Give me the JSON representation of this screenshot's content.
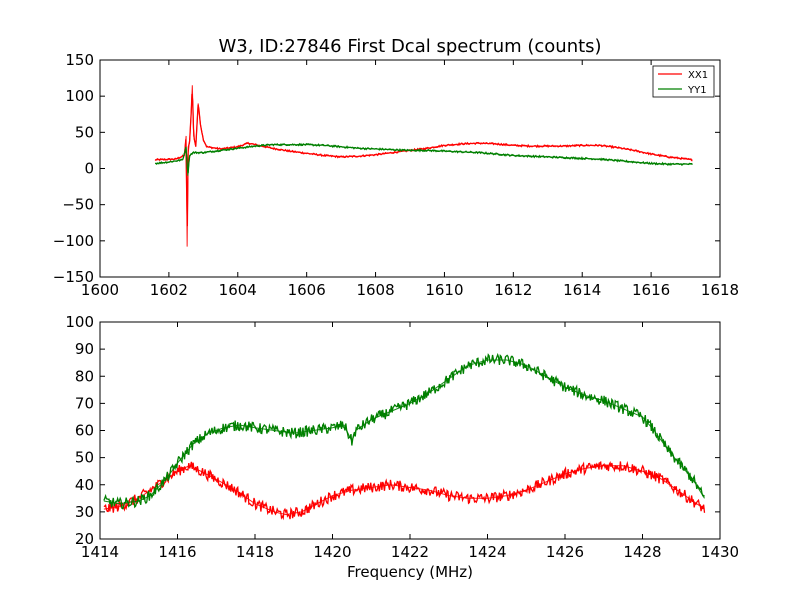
{
  "chart_data": [
    {
      "type": "line",
      "title": "W3, ID:27846 First Dcal spectrum (counts)",
      "xlabel": "",
      "ylabel": "",
      "xlim": [
        1600,
        1618
      ],
      "ylim": [
        -150,
        150
      ],
      "xticks": [
        1600,
        1602,
        1604,
        1606,
        1608,
        1610,
        1612,
        1614,
        1616,
        1618
      ],
      "yticks": [
        -150,
        -100,
        -50,
        0,
        50,
        100,
        150
      ],
      "grid": false,
      "legend": "top-right",
      "series": [
        {
          "name": "XX1",
          "color": "#ff0000",
          "points": [
            [
              1601.6,
              12
            ],
            [
              1602.2,
              13
            ],
            [
              1602.45,
              18
            ],
            [
              1602.5,
              45
            ],
            [
              1602.53,
              -108
            ],
            [
              1602.56,
              30
            ],
            [
              1602.6,
              35
            ],
            [
              1602.65,
              80
            ],
            [
              1602.68,
              115
            ],
            [
              1602.72,
              45
            ],
            [
              1602.78,
              30
            ],
            [
              1602.85,
              90
            ],
            [
              1602.92,
              60
            ],
            [
              1603.0,
              40
            ],
            [
              1603.1,
              30
            ],
            [
              1603.5,
              27
            ],
            [
              1604.0,
              30
            ],
            [
              1604.3,
              35
            ],
            [
              1604.6,
              32
            ],
            [
              1605.0,
              28
            ],
            [
              1605.5,
              24
            ],
            [
              1606.0,
              21
            ],
            [
              1606.5,
              18
            ],
            [
              1607.0,
              16
            ],
            [
              1607.5,
              17
            ],
            [
              1608.0,
              19
            ],
            [
              1608.5,
              22
            ],
            [
              1609.0,
              25
            ],
            [
              1609.5,
              28
            ],
            [
              1610.0,
              32
            ],
            [
              1610.5,
              34
            ],
            [
              1611.0,
              35
            ],
            [
              1611.5,
              34
            ],
            [
              1612.0,
              32
            ],
            [
              1612.5,
              31
            ],
            [
              1613.0,
              31
            ],
            [
              1613.5,
              31
            ],
            [
              1614.0,
              32
            ],
            [
              1614.5,
              32
            ],
            [
              1615.0,
              29
            ],
            [
              1615.5,
              25
            ],
            [
              1616.0,
              20
            ],
            [
              1616.5,
              16
            ],
            [
              1617.2,
              12
            ]
          ]
        },
        {
          "name": "YY1",
          "color": "#008000",
          "points": [
            [
              1601.6,
              7
            ],
            [
              1602.0,
              9
            ],
            [
              1602.4,
              12
            ],
            [
              1602.5,
              30
            ],
            [
              1602.55,
              -10
            ],
            [
              1602.6,
              18
            ],
            [
              1602.7,
              22
            ],
            [
              1603.0,
              22
            ],
            [
              1603.5,
              25
            ],
            [
              1604.0,
              28
            ],
            [
              1604.5,
              31
            ],
            [
              1605.0,
              33
            ],
            [
              1605.5,
              33
            ],
            [
              1606.0,
              33
            ],
            [
              1606.5,
              32
            ],
            [
              1607.0,
              30
            ],
            [
              1607.5,
              28
            ],
            [
              1608.0,
              27
            ],
            [
              1608.5,
              26
            ],
            [
              1609.0,
              25
            ],
            [
              1609.5,
              25
            ],
            [
              1610.0,
              24
            ],
            [
              1610.5,
              23
            ],
            [
              1611.0,
              22
            ],
            [
              1611.5,
              20
            ],
            [
              1612.0,
              18
            ],
            [
              1612.5,
              17
            ],
            [
              1613.0,
              16
            ],
            [
              1613.5,
              15
            ],
            [
              1614.0,
              14
            ],
            [
              1614.5,
              13
            ],
            [
              1615.0,
              11
            ],
            [
              1615.5,
              9
            ],
            [
              1616.0,
              7
            ],
            [
              1616.5,
              6
            ],
            [
              1617.2,
              6
            ]
          ]
        }
      ]
    },
    {
      "type": "line",
      "title": "",
      "xlabel": "Frequency (MHz)",
      "ylabel": "",
      "xlim": [
        1414,
        1430
      ],
      "ylim": [
        20,
        100
      ],
      "xticks": [
        1414,
        1416,
        1418,
        1420,
        1422,
        1424,
        1426,
        1428,
        1430
      ],
      "yticks": [
        20,
        30,
        40,
        50,
        60,
        70,
        80,
        90,
        100
      ],
      "grid": false,
      "series": [
        {
          "color": "#ff0000",
          "points": [
            [
              1414.1,
              31
            ],
            [
              1414.5,
              32
            ],
            [
              1415.0,
              35
            ],
            [
              1415.5,
              40
            ],
            [
              1416.0,
              45
            ],
            [
              1416.3,
              47
            ],
            [
              1416.6,
              45
            ],
            [
              1417.0,
              42
            ],
            [
              1417.5,
              38
            ],
            [
              1418.0,
              33
            ],
            [
              1418.5,
              30
            ],
            [
              1418.8,
              29
            ],
            [
              1419.2,
              30
            ],
            [
              1419.6,
              33
            ],
            [
              1420.0,
              36
            ],
            [
              1420.5,
              38
            ],
            [
              1421.0,
              39
            ],
            [
              1421.5,
              40
            ],
            [
              1422.0,
              39
            ],
            [
              1422.5,
              38
            ],
            [
              1423.0,
              36
            ],
            [
              1423.5,
              35
            ],
            [
              1424.0,
              35
            ],
            [
              1424.5,
              36
            ],
            [
              1425.0,
              38
            ],
            [
              1425.5,
              41
            ],
            [
              1426.0,
              44
            ],
            [
              1426.5,
              46
            ],
            [
              1427.0,
              47
            ],
            [
              1427.5,
              47
            ],
            [
              1428.0,
              45
            ],
            [
              1428.5,
              42
            ],
            [
              1429.0,
              37
            ],
            [
              1429.4,
              33
            ],
            [
              1429.6,
              31
            ]
          ]
        },
        {
          "color": "#008000",
          "points": [
            [
              1414.1,
              34
            ],
            [
              1414.5,
              33
            ],
            [
              1415.0,
              34
            ],
            [
              1415.3,
              36
            ],
            [
              1415.7,
              42
            ],
            [
              1416.0,
              48
            ],
            [
              1416.4,
              55
            ],
            [
              1416.8,
              59
            ],
            [
              1417.2,
              61
            ],
            [
              1417.6,
              62
            ],
            [
              1418.0,
              61
            ],
            [
              1418.5,
              60
            ],
            [
              1419.0,
              59
            ],
            [
              1419.5,
              60
            ],
            [
              1420.0,
              61
            ],
            [
              1420.3,
              62
            ],
            [
              1420.5,
              56
            ],
            [
              1420.6,
              60
            ],
            [
              1421.0,
              64
            ],
            [
              1421.5,
              67
            ],
            [
              1422.0,
              70
            ],
            [
              1422.5,
              74
            ],
            [
              1423.0,
              79
            ],
            [
              1423.5,
              84
            ],
            [
              1424.0,
              86
            ],
            [
              1424.5,
              86
            ],
            [
              1425.0,
              84
            ],
            [
              1425.5,
              80
            ],
            [
              1426.0,
              76
            ],
            [
              1426.5,
              73
            ],
            [
              1427.0,
              71
            ],
            [
              1427.5,
              68
            ],
            [
              1428.0,
              65
            ],
            [
              1428.3,
              60
            ],
            [
              1428.7,
              52
            ],
            [
              1429.0,
              47
            ],
            [
              1429.3,
              42
            ],
            [
              1429.6,
              35
            ]
          ]
        }
      ]
    }
  ]
}
